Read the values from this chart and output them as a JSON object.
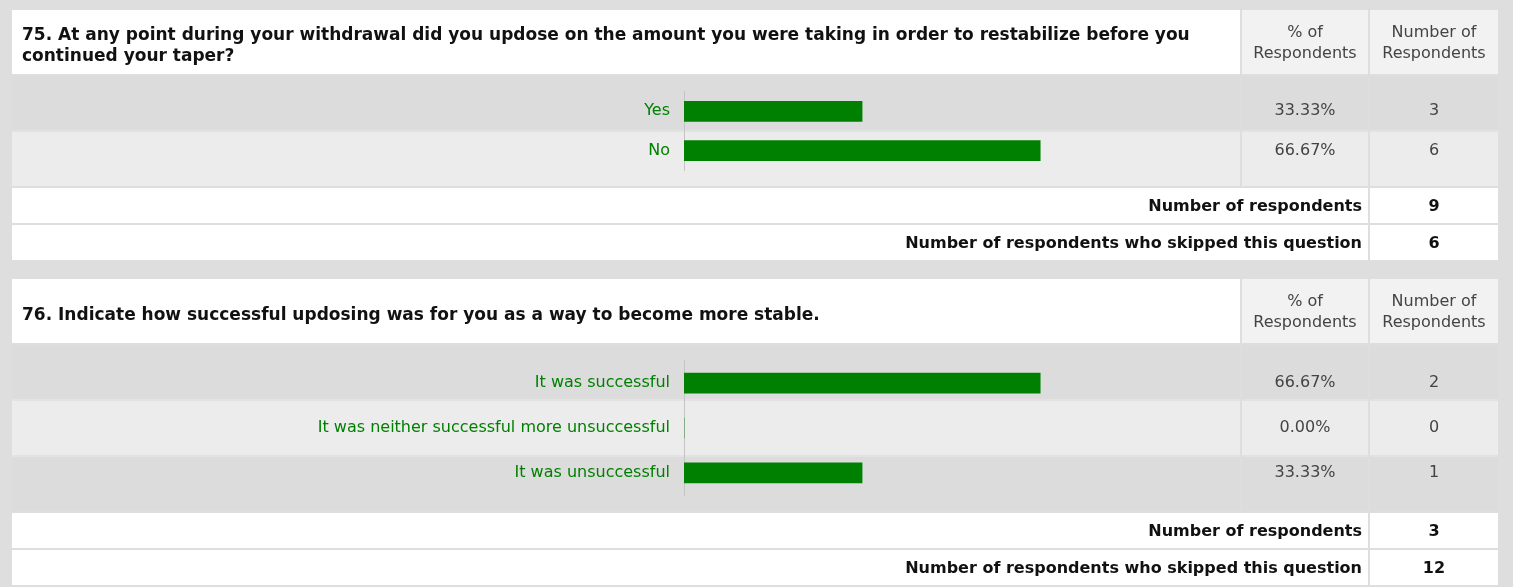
{
  "chart_data": [
    {
      "type": "bar",
      "orientation": "horizontal",
      "title": "75. At any point during your withdrawal did you updose on the amount you were taking in order to restabilize before you continued your taper?",
      "categories": [
        "Yes",
        "No"
      ],
      "values": [
        33.33,
        66.67
      ],
      "color": "#008000",
      "tick_labels": "y",
      "value_labels": [
        "33.33%",
        "66.67%"
      ],
      "annotations": [
        "% of Respondents",
        "Number of Respondents",
        "3",
        "6",
        "Number of respondents",
        "9",
        "Number of respondents who skipped this question",
        "6"
      ]
    },
    {
      "type": "bar",
      "orientation": "horizontal",
      "title": "76. Indicate how successful updosing was for you as a way to become more stable.",
      "categories": [
        "It was successful",
        "It was neither successful more unsuccessful",
        "It was unsuccessful"
      ],
      "values": [
        66.67,
        0,
        33.33
      ],
      "color": "#008000",
      "tick_labels": "y",
      "value_labels": [
        "66.67%",
        "0.00%",
        "33.33%"
      ],
      "annotations": [
        "% of Respondents",
        "Number of Respondents",
        "2",
        "0",
        "1",
        "Number of respondents",
        "3",
        "Number of respondents who skipped this question",
        "12"
      ]
    }
  ]
}
